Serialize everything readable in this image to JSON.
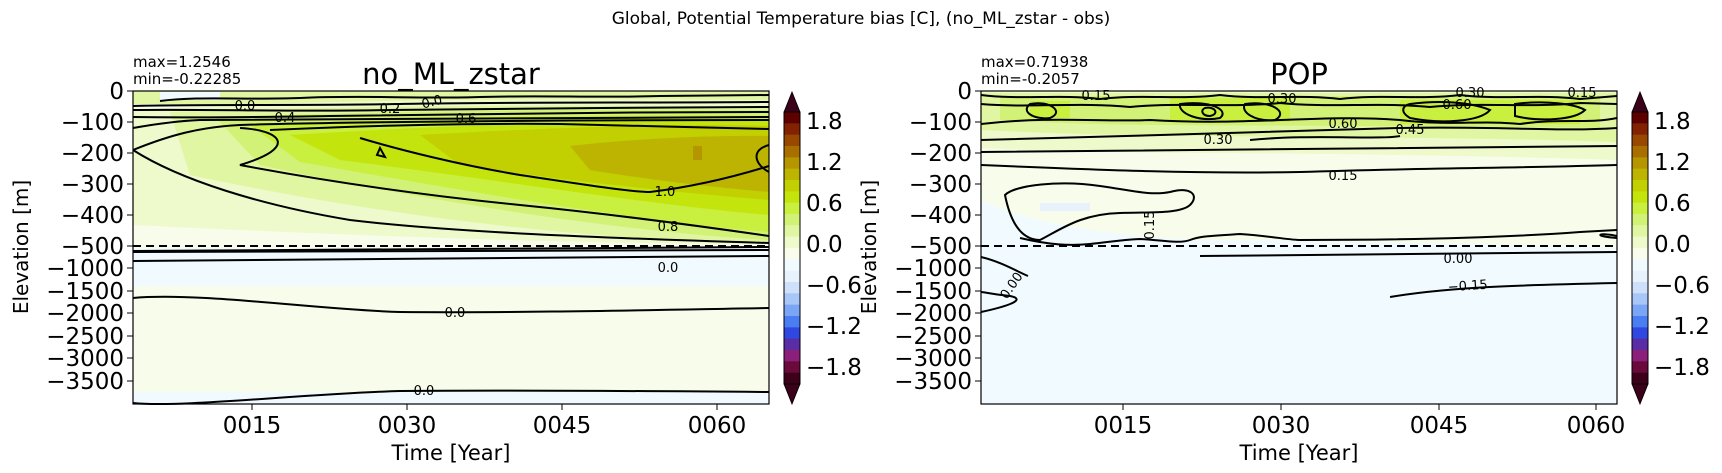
{
  "suptitle": "Global, Potential Temperature bias [C], (no_ML_zstar - obs)",
  "colors": {
    "frame": "#000000",
    "contour": "#000000",
    "colormap": [
      "#3d0019",
      "#6a0a3b",
      "#8c1f7a",
      "#5a2da6",
      "#2f48e0",
      "#4a7df2",
      "#7aa6f5",
      "#a8c6f7",
      "#cfe0fa",
      "#e7f2fd",
      "#f1fbff",
      "#f7fdea",
      "#eef9cc",
      "#e1f6a3",
      "#d2f277",
      "#c9ef3f",
      "#c4e40e",
      "#c2cf00",
      "#bcb400",
      "#b59500",
      "#a86f00",
      "#994800",
      "#822200",
      "#5e0000"
    ]
  },
  "chart_data": [
    {
      "type": "heatmap",
      "title": "no_ML_zstar",
      "annotation": [
        "max=1.2546",
        "min=-0.22285"
      ],
      "xlabel": "Time [Year]",
      "ylabel": "Elevation [m]",
      "xticks": [
        "0015",
        "0030",
        "0045",
        "0060"
      ],
      "xtick_values": [
        15,
        30,
        45,
        60
      ],
      "xlim": [
        1,
        61
      ],
      "yticks": [
        "0",
        "−100",
        "−200",
        "−300",
        "−400",
        "−500",
        "−1000",
        "−1500",
        "−2000",
        "−2500",
        "−3000",
        "−3500"
      ],
      "dashed_line_depth": -500,
      "colorbar": {
        "ticks": [
          "1.8",
          "1.2",
          "0.6",
          "0.0",
          "−0.6",
          "−1.2",
          "−1.8"
        ],
        "range": [
          -2.0,
          2.0
        ]
      },
      "contour_labels": [
        "0.0",
        "0.2",
        "0.0",
        "0.4",
        "0.6",
        "1.0",
        "0.8",
        "0.0",
        "0.0",
        "0.0"
      ]
    },
    {
      "type": "heatmap",
      "title": "POP",
      "annotation": [
        "max=0.71938",
        "min=-0.2057"
      ],
      "xlabel": "Time [Year]",
      "ylabel": "Elevation [m]",
      "xticks": [
        "0015",
        "0030",
        "0045",
        "0060"
      ],
      "xtick_values": [
        15,
        30,
        45,
        60
      ],
      "xlim": [
        1,
        61
      ],
      "yticks": [
        "0",
        "−100",
        "−200",
        "−300",
        "−400",
        "−500",
        "−1000",
        "−1500",
        "−2000",
        "−2500",
        "−3000",
        "−3500"
      ],
      "dashed_line_depth": -500,
      "colorbar": {
        "ticks": [
          "1.8",
          "1.2",
          "0.6",
          "0.0",
          "−0.6",
          "−1.2",
          "−1.8"
        ],
        "range": [
          -2.0,
          2.0
        ]
      },
      "contour_labels": [
        "0.15",
        "0.30",
        "0.30",
        "0.15",
        "0.60",
        "0.60",
        "0.45",
        "0.30",
        "0.15",
        "0.15",
        "0.00",
        "−0.15",
        "0.00"
      ]
    }
  ]
}
